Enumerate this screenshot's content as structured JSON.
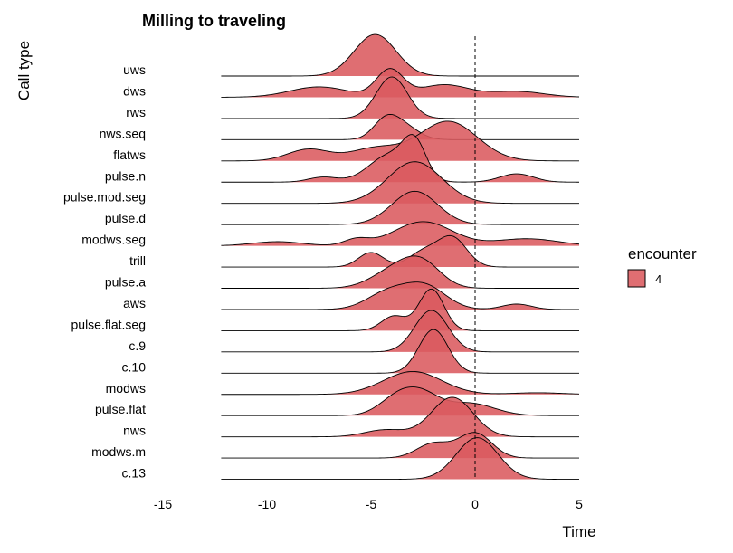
{
  "chart_data": {
    "type": "ridgeline",
    "title": "Milling to traveling",
    "xlabel": "Time",
    "ylabel": "Call type",
    "xlim": [
      -15,
      5
    ],
    "xticks": [
      -15,
      -10,
      -5,
      0,
      5
    ],
    "data_range": [
      -12.2,
      5
    ],
    "reference_line": {
      "x": 0,
      "style": "dashed"
    },
    "fill_color": "#DB5A5F",
    "fill_opacity": 0.88,
    "legend": {
      "title": "encounter",
      "entries": [
        "4"
      ],
      "placement": "right"
    },
    "grid": false,
    "series": [
      {
        "name": "uws",
        "components": [
          [
            -4.8,
            1.0,
            1.0
          ]
        ]
      },
      {
        "name": "dws",
        "components": [
          [
            -7.5,
            1.4,
            0.25
          ],
          [
            -4.1,
            0.65,
            0.65
          ],
          [
            -1.5,
            1.2,
            0.3
          ],
          [
            2.0,
            1.3,
            0.14
          ]
        ]
      },
      {
        "name": "rws",
        "components": [
          [
            -4.0,
            0.75,
            1.0
          ]
        ]
      },
      {
        "name": "nws.seq",
        "components": [
          [
            -4.3,
            0.6,
            0.45
          ],
          [
            -3.4,
            0.7,
            0.3
          ]
        ]
      },
      {
        "name": "flatws",
        "components": [
          [
            -8.0,
            1.0,
            0.28
          ],
          [
            -4.8,
            1.2,
            0.3
          ],
          [
            -1.3,
            1.4,
            0.95
          ]
        ]
      },
      {
        "name": "pulse.n",
        "components": [
          [
            -7.3,
            0.7,
            0.12
          ],
          [
            -4.1,
            1.0,
            0.65
          ],
          [
            -2.9,
            0.55,
            0.8
          ],
          [
            2.0,
            0.8,
            0.2
          ]
        ]
      },
      {
        "name": "pulse.mod.seg",
        "components": [
          [
            -2.9,
            1.3,
            1.0
          ]
        ]
      },
      {
        "name": "pulse.d",
        "components": [
          [
            -2.9,
            1.1,
            0.8
          ]
        ]
      },
      {
        "name": "modws.seg",
        "components": [
          [
            -9.5,
            1.2,
            0.1
          ],
          [
            -5.7,
            0.6,
            0.15
          ],
          [
            -2.5,
            1.4,
            0.58
          ],
          [
            2.5,
            1.5,
            0.17
          ]
        ]
      },
      {
        "name": "trill",
        "components": [
          [
            -5.0,
            0.6,
            0.35
          ],
          [
            -2.5,
            0.7,
            0.35
          ],
          [
            -1.1,
            0.7,
            0.7
          ]
        ]
      },
      {
        "name": "pulse.a",
        "components": [
          [
            -3.8,
            1.1,
            0.45
          ],
          [
            -2.5,
            0.9,
            0.5
          ]
        ]
      },
      {
        "name": "aws",
        "components": [
          [
            -4.2,
            1.0,
            0.4
          ],
          [
            -2.4,
            1.0,
            0.55
          ],
          [
            2.0,
            0.7,
            0.13
          ]
        ]
      },
      {
        "name": "pulse.flat.seg",
        "components": [
          [
            -3.9,
            0.6,
            0.35
          ],
          [
            -2.1,
            0.6,
            1.0
          ]
        ]
      },
      {
        "name": "c.9",
        "components": [
          [
            -2.1,
            0.8,
            1.0
          ]
        ]
      },
      {
        "name": "c.10",
        "components": [
          [
            -2.0,
            0.7,
            1.05
          ]
        ]
      },
      {
        "name": "modws",
        "components": [
          [
            -3.0,
            1.4,
            0.55
          ],
          [
            3.0,
            1.2,
            0.04
          ]
        ]
      },
      {
        "name": "pulse.flat",
        "components": [
          [
            -3.6,
            0.9,
            0.5
          ],
          [
            -2.4,
            0.8,
            0.35
          ],
          [
            -0.3,
            1.2,
            0.3
          ]
        ]
      },
      {
        "name": "nws",
        "components": [
          [
            -4.3,
            1.0,
            0.17
          ],
          [
            -1.1,
            1.0,
            0.95
          ]
        ]
      },
      {
        "name": "modws.m",
        "components": [
          [
            -2.0,
            0.8,
            0.35
          ],
          [
            0.0,
            0.8,
            0.6
          ]
        ]
      },
      {
        "name": "c.13",
        "components": [
          [
            0.1,
            1.0,
            1.0
          ]
        ]
      }
    ]
  }
}
